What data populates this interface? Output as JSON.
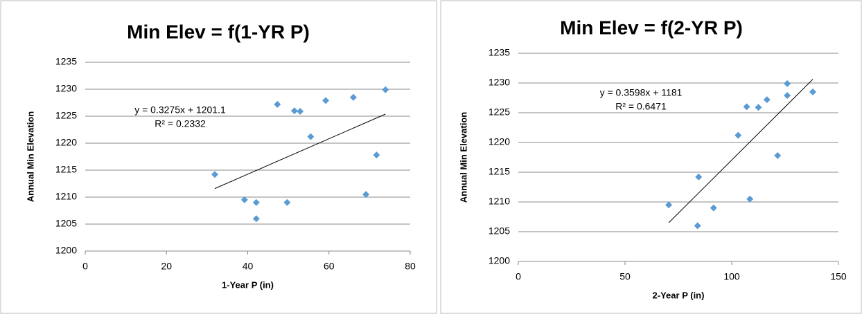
{
  "chart_data": [
    {
      "type": "scatter",
      "title": "Min Elev = f(1-YR P)",
      "x_label": "1-Year P (in)",
      "y_label": "Annual Min Elevation",
      "x": [
        31.9,
        39.2,
        42.1,
        42.1,
        49.7,
        47.3,
        51.5,
        52.9,
        55.5,
        59.2,
        66.0,
        69.1,
        71.7,
        73.9
      ],
      "values": [
        1214.2,
        1209.5,
        1209.0,
        1206.0,
        1209.0,
        1227.2,
        1226.0,
        1225.9,
        1221.2,
        1227.9,
        1228.5,
        1210.5,
        1217.8,
        1229.9
      ],
      "color": "#5b9bd5",
      "xlim": [
        0,
        80
      ],
      "xticks": [
        0,
        20,
        40,
        60,
        80
      ],
      "ylim": [
        1200,
        1235
      ],
      "yticks": [
        1200,
        1205,
        1210,
        1215,
        1220,
        1225,
        1230,
        1235
      ],
      "grid": true,
      "trendline": {
        "equation": "y = 0.3275x + 1201.1",
        "r2": "R² = 0.2332"
      }
    },
    {
      "type": "scatter",
      "title": "Min Elev = f(2-YR P)",
      "x_label": "2-Year P (in)",
      "y_label": "Annual Min Elevation",
      "x": [
        70.5,
        84.5,
        84.0,
        91.5,
        108.5,
        103.0,
        107.0,
        112.5,
        116.5,
        126.0,
        126.0,
        138.0,
        121.5
      ],
      "values": [
        1209.5,
        1214.2,
        1206.0,
        1209.0,
        1210.5,
        1221.2,
        1226.0,
        1225.9,
        1227.2,
        1227.9,
        1229.9,
        1228.5,
        1217.8
      ],
      "color": "#5b9bd5",
      "xlim": [
        0,
        150
      ],
      "xticks": [
        0,
        50,
        100,
        150
      ],
      "ylim": [
        1200,
        1235
      ],
      "yticks": [
        1200,
        1205,
        1210,
        1215,
        1220,
        1225,
        1230,
        1235
      ],
      "grid": true,
      "trendline": {
        "equation": "y = 0.3598x + 1181",
        "r2": "R² = 0.6471"
      }
    }
  ]
}
